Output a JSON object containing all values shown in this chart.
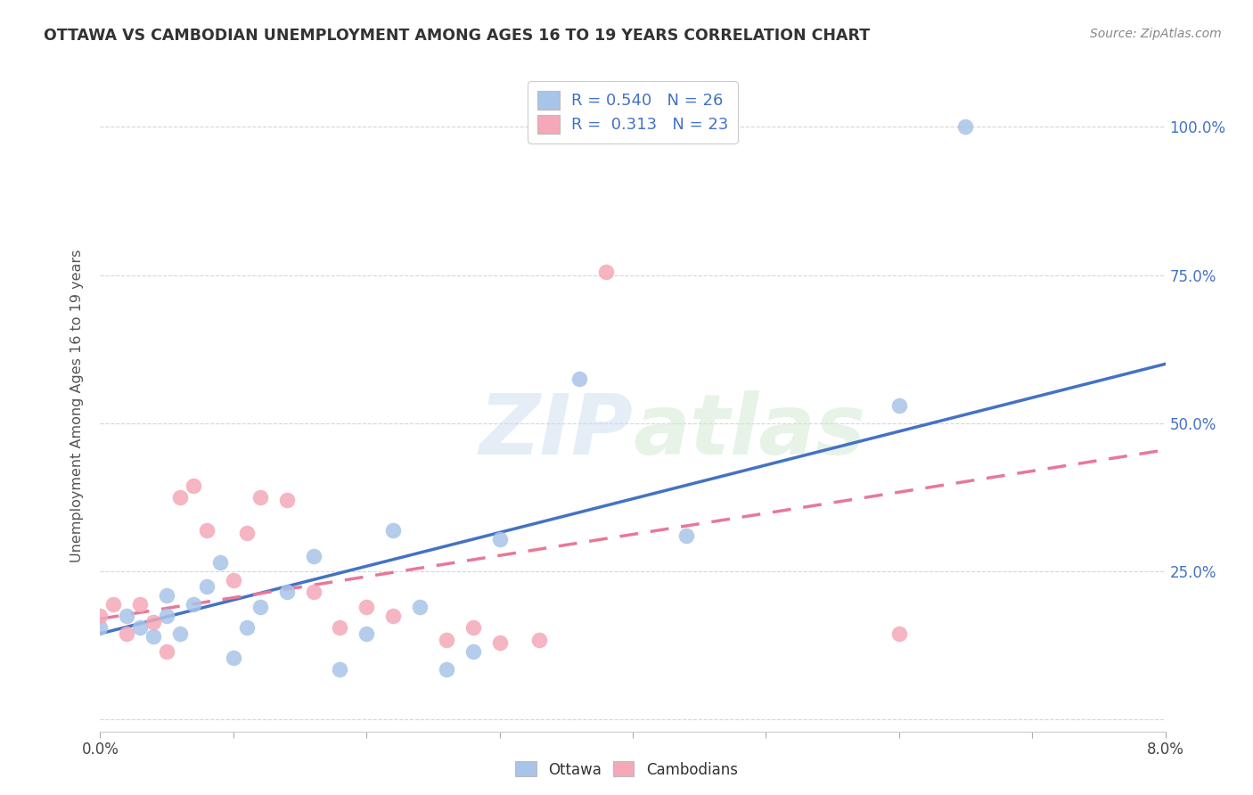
{
  "title": "OTTAWA VS CAMBODIAN UNEMPLOYMENT AMONG AGES 16 TO 19 YEARS CORRELATION CHART",
  "source": "Source: ZipAtlas.com",
  "ylabel": "Unemployment Among Ages 16 to 19 years",
  "xlim": [
    0.0,
    0.08
  ],
  "ylim": [
    -0.02,
    1.08
  ],
  "y_ticks": [
    0.0,
    0.25,
    0.5,
    0.75,
    1.0
  ],
  "y_tick_labels": [
    "",
    "25.0%",
    "50.0%",
    "75.0%",
    "100.0%"
  ],
  "ottawa_color": "#a8c4e8",
  "cambodian_color": "#f4a8b8",
  "ottawa_line_color": "#4472c4",
  "cambodian_line_color": "#e87898",
  "r_ottawa": 0.54,
  "n_ottawa": 26,
  "r_cambodian": 0.313,
  "n_cambodian": 23,
  "ottawa_x": [
    0.0,
    0.002,
    0.003,
    0.004,
    0.005,
    0.005,
    0.006,
    0.007,
    0.008,
    0.009,
    0.01,
    0.011,
    0.012,
    0.014,
    0.016,
    0.018,
    0.02,
    0.022,
    0.024,
    0.026,
    0.028,
    0.03,
    0.036,
    0.044,
    0.06,
    0.065
  ],
  "ottawa_y": [
    0.155,
    0.175,
    0.155,
    0.14,
    0.21,
    0.175,
    0.145,
    0.195,
    0.225,
    0.265,
    0.105,
    0.155,
    0.19,
    0.215,
    0.275,
    0.085,
    0.145,
    0.32,
    0.19,
    0.085,
    0.115,
    0.305,
    0.575,
    0.31,
    0.53,
    1.0
  ],
  "cambodian_x": [
    0.0,
    0.001,
    0.002,
    0.003,
    0.004,
    0.005,
    0.006,
    0.007,
    0.008,
    0.01,
    0.011,
    0.012,
    0.014,
    0.016,
    0.018,
    0.02,
    0.022,
    0.026,
    0.028,
    0.03,
    0.033,
    0.06,
    0.038
  ],
  "cambodian_y": [
    0.175,
    0.195,
    0.145,
    0.195,
    0.165,
    0.115,
    0.375,
    0.395,
    0.32,
    0.235,
    0.315,
    0.375,
    0.37,
    0.215,
    0.155,
    0.19,
    0.175,
    0.135,
    0.155,
    0.13,
    0.135,
    0.145,
    0.755
  ],
  "ottawa_trend": [
    0.145,
    0.6
  ],
  "cambodian_trend": [
    0.17,
    0.455
  ],
  "watermark_zip": "ZIP",
  "watermark_atlas": "atlas",
  "background_color": "#ffffff",
  "grid_color": "#cccccc"
}
